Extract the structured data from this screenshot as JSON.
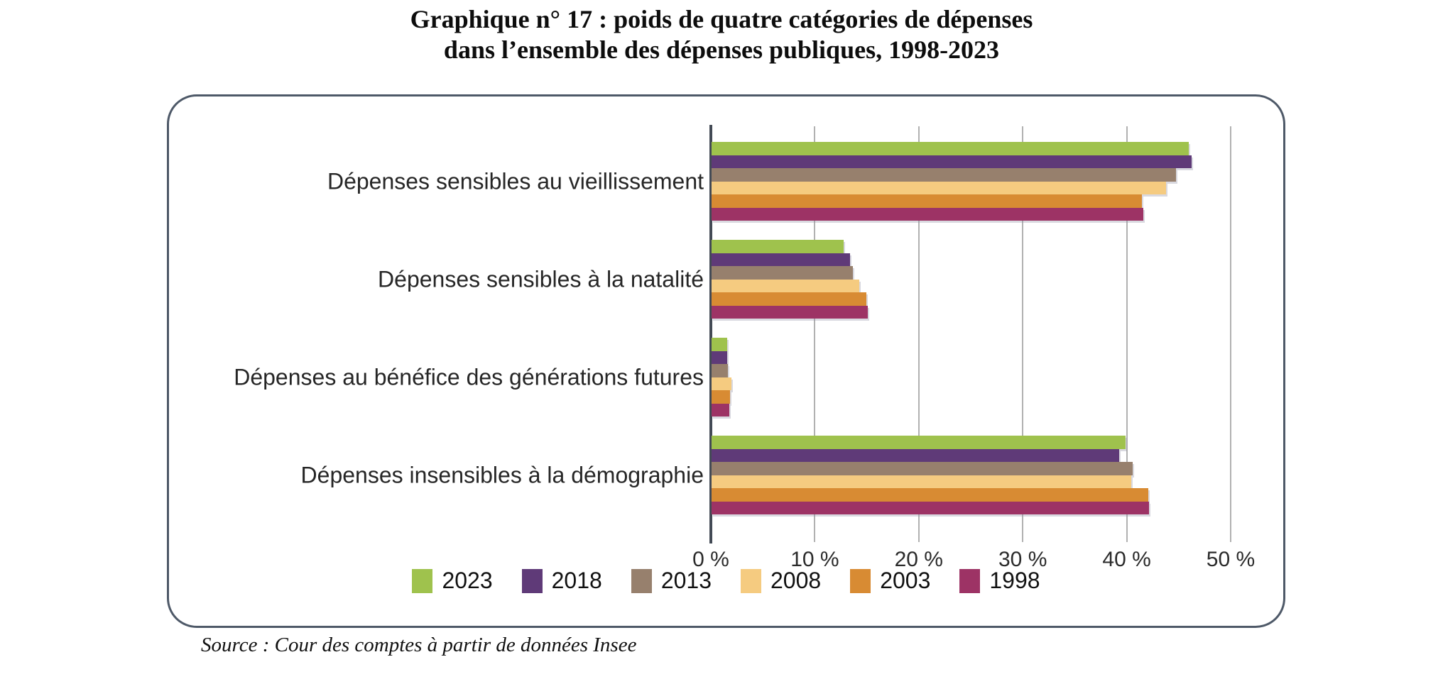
{
  "title": {
    "line1": "Graphique n° 17 : poids de quatre catégories de dépenses",
    "line2": "dans l’ensemble des dépenses publiques, 1998-2023"
  },
  "source_note": "Source : Cour des comptes à partir de données Insee",
  "colors": {
    "panel_border": "#4e5968",
    "axis_line": "#434a55",
    "gridline": "#b1b1b1",
    "title_text": "#0d0d0d",
    "label_text": "#262626"
  },
  "chart_data": {
    "type": "bar",
    "orientation": "horizontal",
    "title": "Graphique n° 17 : poids de quatre catégories de dépenses dans l’ensemble des dépenses publiques, 1998-2023",
    "categories": [
      "Dépenses sensibles au vieillissement",
      "Dépenses sensibles à la natalité",
      "Dépenses au bénéfice des générations futures",
      "Dépenses insensibles à la démographie"
    ],
    "series": [
      {
        "name": "2023",
        "color": "#9fc24d",
        "values": [
          45.9,
          12.7,
          1.5,
          39.8
        ]
      },
      {
        "name": "2018",
        "color": "#5f3a78",
        "values": [
          46.2,
          13.3,
          1.5,
          39.2
        ]
      },
      {
        "name": "2013",
        "color": "#97806d",
        "values": [
          44.7,
          13.6,
          1.6,
          40.5
        ]
      },
      {
        "name": "2008",
        "color": "#f5cb80",
        "values": [
          43.7,
          14.2,
          1.9,
          40.4
        ]
      },
      {
        "name": "2003",
        "color": "#d88b33",
        "values": [
          41.4,
          14.9,
          1.8,
          42.0
        ]
      },
      {
        "name": "1998",
        "color": "#9d3365",
        "values": [
          41.5,
          15.0,
          1.7,
          42.1
        ]
      }
    ],
    "x_ticks": [
      "0 %",
      "10 %",
      "20 %",
      "30 %",
      "40 %",
      "50 %"
    ],
    "xlim": [
      0,
      50
    ],
    "grid": true,
    "legend_position": "bottom-center",
    "unit": "%"
  }
}
